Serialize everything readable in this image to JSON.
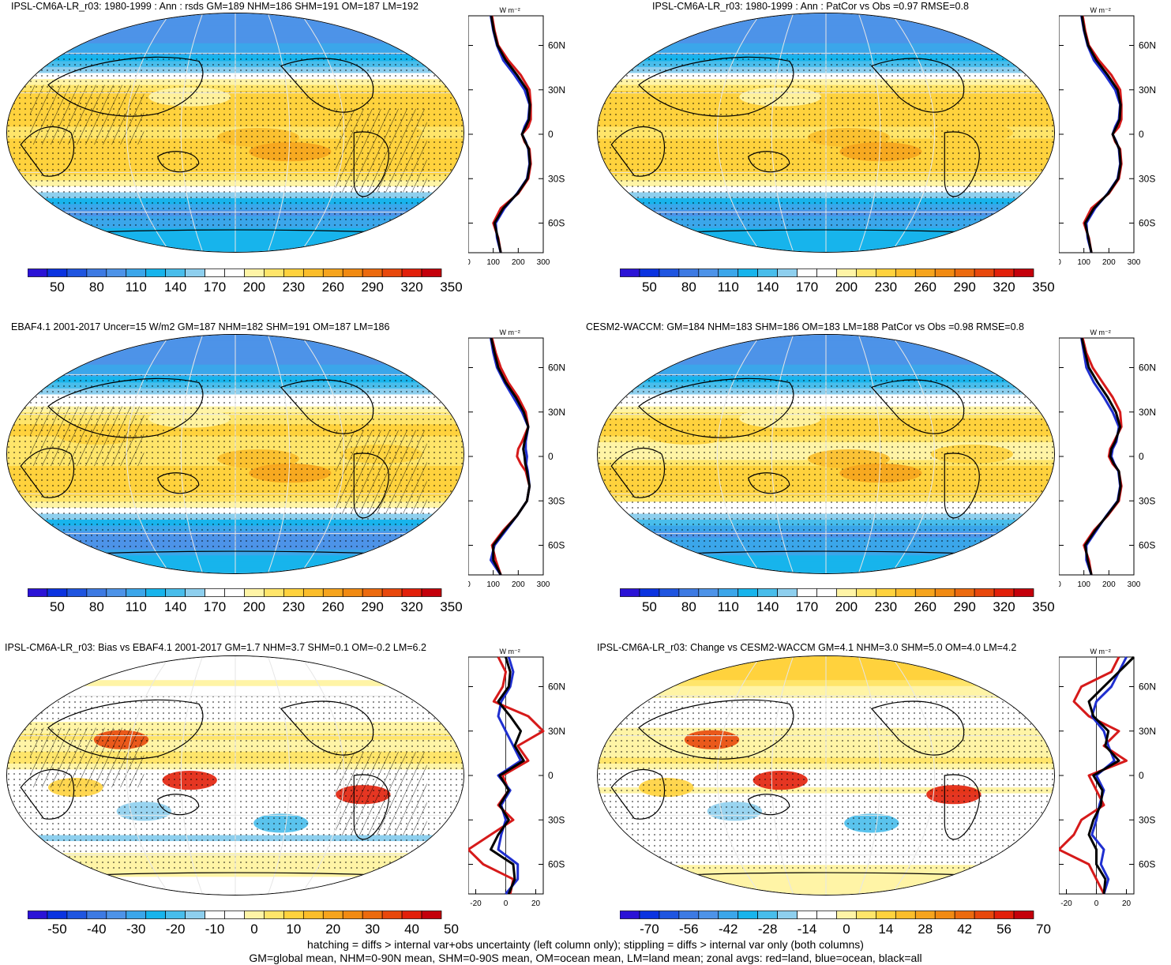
{
  "panels": [
    {
      "id": "p1",
      "title": "IPSL-CM6A-LR_r03: 1980-1999 : Ann : rsds GM=189 NHM=186 SHM=191 OM=187 LM=192",
      "kind": "abs",
      "hatch": true,
      "colorbar_labels": [
        "50",
        "80",
        "110",
        "140",
        "170",
        "200",
        "230",
        "260",
        "290",
        "320",
        "350"
      ],
      "zonal_xticks": [
        "0",
        "100",
        "200",
        "300"
      ]
    },
    {
      "id": "p2",
      "title": "IPSL-CM6A-LR_r03: 1980-1999 : Ann : PatCor vs Obs =0.97 RMSE=0.8",
      "kind": "abs",
      "hatch": false,
      "colorbar_labels": [
        "50",
        "80",
        "110",
        "140",
        "170",
        "200",
        "230",
        "260",
        "290",
        "320",
        "350"
      ],
      "zonal_xticks": [
        "0",
        "100",
        "200",
        "300"
      ]
    },
    {
      "id": "p3",
      "title": "EBAF4.1 2001-2017 Uncer=15 W/m2 GM=187 NHM=182 SHM=191 OM=187 LM=186",
      "kind": "abs",
      "hatch": true,
      "colorbar_labels": [
        "50",
        "80",
        "110",
        "140",
        "170",
        "200",
        "230",
        "260",
        "290",
        "320",
        "350"
      ],
      "zonal_xticks": [
        "0",
        "100",
        "200",
        "300"
      ]
    },
    {
      "id": "p4",
      "title": "CESM2-WACCM: GM=184 NHM=183 SHM=186 OM=183 LM=188 PatCor vs Obs =0.98 RMSE=0.8",
      "kind": "abs",
      "hatch": false,
      "colorbar_labels": [
        "50",
        "80",
        "110",
        "140",
        "170",
        "200",
        "230",
        "260",
        "290",
        "320",
        "350"
      ],
      "zonal_xticks": [
        "0",
        "100",
        "200",
        "300"
      ]
    },
    {
      "id": "p5",
      "title": "IPSL-CM6A-LR_r03: Bias vs EBAF4.1 2001-2017 GM=1.7 NHM=3.7 SHM=0.1 OM=-0.2 LM=6.2",
      "kind": "diff",
      "hatch": true,
      "colorbar_labels": [
        "-50",
        "-40",
        "-30",
        "-20",
        "-10",
        "0",
        "10",
        "20",
        "30",
        "40",
        "50"
      ],
      "zonal_xticks": [
        "-20",
        "0",
        "20"
      ]
    },
    {
      "id": "p6",
      "title": "IPSL-CM6A-LR_r03: Change vs CESM2-WACCM GM=4.1 NHM=3.0 SHM=5.0 OM=4.0 LM=4.2",
      "kind": "diff",
      "hatch": false,
      "colorbar_labels": [
        "-70",
        "-56",
        "-42",
        "-28",
        "-14",
        "0",
        "14",
        "28",
        "42",
        "56",
        "70"
      ],
      "zonal_xticks": [
        "-20",
        "0",
        "20"
      ]
    }
  ],
  "zonal_unit": "W m⁻²",
  "lat_ticks": [
    "60N",
    "30N",
    "0",
    "30S",
    "60S"
  ],
  "colors": {
    "abs_scale": [
      "#2b13d6",
      "#0b33e0",
      "#1f55e0",
      "#3d7ae3",
      "#4d93e8",
      "#3ba6ea",
      "#17b4ec",
      "#48bdeb",
      "#8ecfee",
      "#ffffff",
      "#ffffff",
      "#fff4a6",
      "#ffe56a",
      "#ffd23d",
      "#fbbd2a",
      "#f6a41d",
      "#f18a12",
      "#ec6a0e",
      "#e8480c",
      "#e2200a",
      "#c4000b"
    ],
    "diff_scale": [
      "#2b13d6",
      "#0b33e0",
      "#1f55e0",
      "#3d7ae3",
      "#4d93e8",
      "#3ba6ea",
      "#17b4ec",
      "#48bdeb",
      "#8ecfee",
      "#ffffff",
      "#ffffff",
      "#fff4a6",
      "#ffe56a",
      "#ffd23d",
      "#fbbd2a",
      "#f6a41d",
      "#f18a12",
      "#ec6a0e",
      "#e8480c",
      "#e2200a",
      "#c4000b"
    ],
    "land": "#d61a1a",
    "ocean": "#1f2fd0",
    "all": "#000000"
  },
  "chart_data": [
    {
      "type": "heatmap",
      "title": "IPSL-CM6A-LR_r03: 1980-1999 : Ann : rsds GM=189 NHM=186 SHM=191 OM=187 LM=192",
      "zonal": {
        "lat": [
          80,
          70,
          60,
          50,
          40,
          30,
          20,
          10,
          5,
          0,
          -5,
          -10,
          -20,
          -30,
          -40,
          -50,
          -60,
          -70,
          -80
        ],
        "land": [
          95,
          105,
          120,
          160,
          210,
          245,
          250,
          250,
          240,
          215,
          225,
          245,
          250,
          240,
          200,
          130,
          100,
          120,
          130
        ],
        "ocean": [
          90,
          100,
          115,
          140,
          185,
          225,
          245,
          240,
          225,
          215,
          230,
          240,
          245,
          235,
          195,
          145,
          110,
          115,
          130
        ],
        "all": [
          92,
          102,
          117,
          150,
          195,
          235,
          247,
          243,
          230,
          215,
          228,
          242,
          247,
          237,
          197,
          140,
          105,
          118,
          130
        ]
      }
    },
    {
      "type": "heatmap",
      "title": "IPSL-CM6A-LR_r03: 1980-1999 : Ann : PatCor vs Obs =0.97 RMSE=0.8",
      "zonal": {
        "lat": [
          80,
          70,
          60,
          50,
          40,
          30,
          20,
          10,
          5,
          0,
          -5,
          -10,
          -20,
          -30,
          -40,
          -50,
          -60,
          -70,
          -80
        ],
        "land": [
          95,
          105,
          120,
          160,
          210,
          245,
          250,
          250,
          240,
          215,
          225,
          245,
          250,
          240,
          200,
          130,
          100,
          120,
          130
        ],
        "ocean": [
          90,
          100,
          115,
          140,
          185,
          225,
          245,
          240,
          225,
          215,
          230,
          240,
          245,
          235,
          195,
          145,
          110,
          115,
          130
        ],
        "all": [
          92,
          102,
          117,
          150,
          195,
          235,
          247,
          243,
          230,
          215,
          228,
          242,
          247,
          237,
          197,
          140,
          105,
          118,
          130
        ]
      }
    },
    {
      "type": "heatmap",
      "title": "EBAF4.1 2001-2017 Uncer=15 W/m2 GM=187 NHM=182 SHM=191 OM=187 LM=186",
      "zonal": {
        "lat": [
          80,
          70,
          60,
          50,
          40,
          30,
          20,
          10,
          5,
          0,
          -5,
          -10,
          -20,
          -30,
          -40,
          -50,
          -60,
          -70,
          -80
        ],
        "land": [
          95,
          110,
          130,
          160,
          200,
          230,
          240,
          215,
          200,
          195,
          210,
          230,
          245,
          235,
          195,
          140,
          95,
          110,
          130
        ],
        "ocean": [
          90,
          100,
          115,
          145,
          180,
          215,
          240,
          230,
          230,
          235,
          232,
          238,
          245,
          235,
          195,
          150,
          105,
          90,
          130
        ],
        "all": [
          92,
          105,
          120,
          150,
          190,
          222,
          240,
          225,
          220,
          225,
          228,
          235,
          245,
          235,
          195,
          145,
          100,
          100,
          130
        ]
      }
    },
    {
      "type": "heatmap",
      "title": "CESM2-WACCM: GM=184 NHM=183 SHM=186 OM=183 LM=188 PatCor vs Obs =0.98 RMSE=0.8",
      "zonal": {
        "lat": [
          80,
          70,
          60,
          50,
          40,
          30,
          20,
          10,
          5,
          0,
          -5,
          -10,
          -20,
          -30,
          -40,
          -50,
          -60,
          -70,
          -80
        ],
        "land": [
          95,
          110,
          135,
          175,
          215,
          245,
          250,
          220,
          205,
          200,
          215,
          240,
          250,
          240,
          195,
          140,
          100,
          120,
          130
        ],
        "ocean": [
          90,
          100,
          110,
          140,
          180,
          215,
          240,
          230,
          215,
          210,
          222,
          238,
          245,
          235,
          190,
          150,
          110,
          110,
          130
        ],
        "all": [
          92,
          105,
          120,
          155,
          195,
          228,
          245,
          225,
          210,
          205,
          220,
          240,
          247,
          237,
          192,
          145,
          105,
          115,
          130
        ]
      }
    },
    {
      "type": "heatmap",
      "title": "IPSL-CM6A-LR_r03: Bias vs EBAF4.1 2001-2017 GM=1.7 NHM=3.7 SHM=0.1 OM=-0.2 LM=6.2",
      "zonal": {
        "lat": [
          80,
          70,
          60,
          50,
          40,
          30,
          20,
          10,
          0,
          -10,
          -20,
          -30,
          -40,
          -50,
          -60,
          -70,
          -80
        ],
        "land": [
          -5,
          0,
          -2,
          -8,
          15,
          25,
          8,
          15,
          -2,
          2,
          -5,
          5,
          -10,
          -25,
          -15,
          5,
          3
        ],
        "ocean": [
          2,
          5,
          3,
          -3,
          -5,
          0,
          5,
          10,
          -5,
          3,
          -3,
          0,
          -3,
          -5,
          8,
          8,
          0
        ],
        "all": [
          0,
          3,
          2,
          -5,
          3,
          10,
          6,
          12,
          -4,
          2,
          -4,
          2,
          -5,
          -10,
          5,
          6,
          2
        ]
      }
    },
    {
      "type": "heatmap",
      "title": "IPSL-CM6A-LR_r03: Change vs CESM2-WACCM GM=4.1 NHM=3.0 SHM=5.0 OM=4.0 LM=4.2",
      "zonal": {
        "lat": [
          80,
          70,
          60,
          50,
          40,
          30,
          20,
          10,
          0,
          -10,
          -20,
          -30,
          -40,
          -50,
          -60,
          -70,
          -80
        ],
        "land": [
          15,
          10,
          -10,
          -15,
          -5,
          15,
          5,
          20,
          -5,
          0,
          5,
          -10,
          -15,
          -25,
          -5,
          0,
          5
        ],
        "ocean": [
          20,
          15,
          10,
          0,
          -3,
          5,
          8,
          12,
          0,
          5,
          2,
          0,
          -3,
          5,
          3,
          8,
          5
        ],
        "all": [
          25,
          15,
          5,
          -5,
          -2,
          8,
          6,
          15,
          -2,
          4,
          3,
          -2,
          -5,
          0,
          0,
          6,
          5
        ]
      }
    }
  ],
  "footer": {
    "line1": "hatching = diffs > internal var+obs uncertainty (left column only); stippling = diffs > internal var only (both columns)",
    "line2": "GM=global mean, NHM=0-90N mean, SHM=0-90S mean, OM=ocean mean, LM=land mean; zonal avgs: red=land, blue=ocean, black=all"
  }
}
